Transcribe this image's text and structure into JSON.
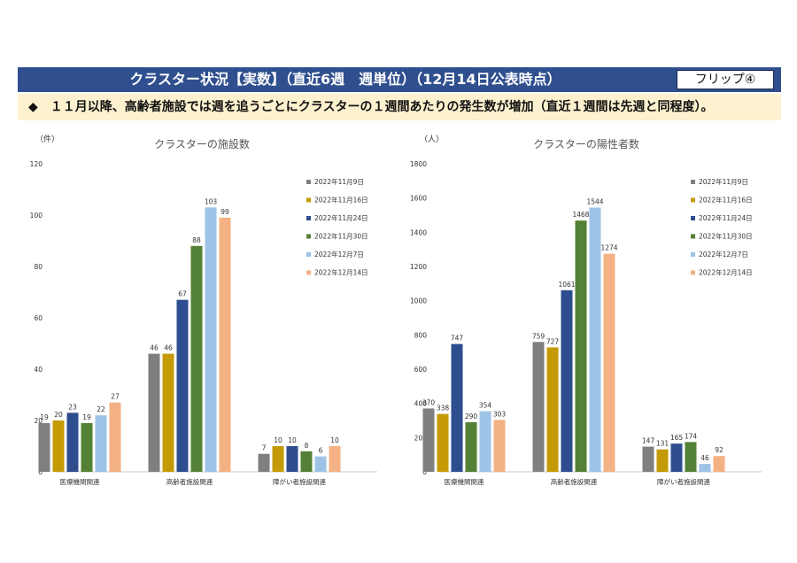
{
  "header": {
    "title": "クラスター状況【実数】（直近6週　週単位）（12月14日公表時点）",
    "flip_label": "フリップ④"
  },
  "subtitle": {
    "bullet": "◆",
    "text": "１１月以降、高齢者施設では週を追うごとにクラスターの１週間あたりの発生数が増加（直近１週間は先週と同程度）。"
  },
  "colors": [
    "#7f7f7f",
    "#c49a06",
    "#2e4d8f",
    "#538135",
    "#9dc3e6",
    "#f4b183"
  ],
  "chart_data": [
    {
      "type": "bar",
      "title": "クラスターの施設数",
      "unit": "（件）",
      "categories": [
        "医療機関関連",
        "高齢者施設関連",
        "障がい者施設関連"
      ],
      "series": [
        {
          "name": "2022年11月9日",
          "values": [
            19,
            46,
            7
          ]
        },
        {
          "name": "2022年11月16日",
          "values": [
            20,
            46,
            10
          ]
        },
        {
          "name": "2022年11月24日",
          "values": [
            23,
            67,
            10
          ]
        },
        {
          "name": "2022年11月30日",
          "values": [
            19,
            88,
            8
          ]
        },
        {
          "name": "2022年12月7日",
          "values": [
            22,
            103,
            6
          ]
        },
        {
          "name": "2022年12月14日",
          "values": [
            27,
            99,
            10
          ]
        }
      ],
      "ylim": [
        0,
        120
      ],
      "yticks": [
        0,
        20,
        40,
        60,
        80,
        100,
        120
      ],
      "legend": "right"
    },
    {
      "type": "bar",
      "title": "クラスターの陽性者数",
      "unit": "（人）",
      "categories": [
        "医療機関関連",
        "高齢者施設関連",
        "障がい者施設関連"
      ],
      "series": [
        {
          "name": "2022年11月9日",
          "values": [
            370,
            759,
            147
          ]
        },
        {
          "name": "2022年11月16日",
          "values": [
            338,
            727,
            131
          ]
        },
        {
          "name": "2022年11月24日",
          "values": [
            747,
            1061,
            165
          ]
        },
        {
          "name": "2022年11月30日",
          "values": [
            290,
            1468,
            174
          ]
        },
        {
          "name": "2022年12月7日",
          "values": [
            354,
            1544,
            46
          ]
        },
        {
          "name": "2022年12月14日",
          "values": [
            303,
            1274,
            92
          ]
        }
      ],
      "ylim": [
        0,
        1800
      ],
      "yticks": [
        0,
        200,
        400,
        600,
        800,
        1000,
        1200,
        1400,
        1600,
        1800
      ],
      "legend": "right"
    }
  ]
}
